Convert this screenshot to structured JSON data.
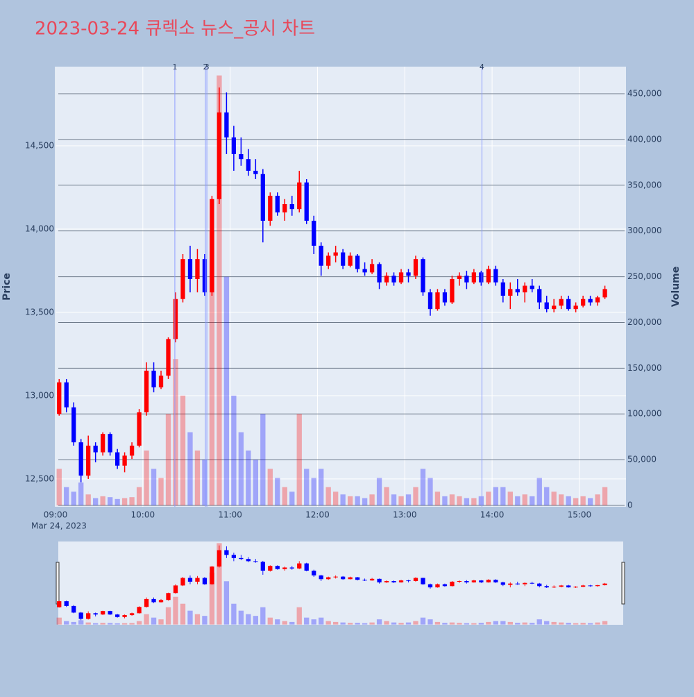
{
  "chart_data": {
    "type": "candlestick",
    "title": "2023-03-24 큐렉소 뉴스_공시 차트",
    "title_color": "#e8485a",
    "x_subtitle": "Mar 24, 2023",
    "yaxis_title": "Price",
    "y2axis_title": "Volume",
    "increasing_color": "#ff0000",
    "decreasing_color": "#0000ff",
    "x": [
      "09:00",
      "09:05",
      "09:10",
      "09:15",
      "09:20",
      "09:25",
      "09:30",
      "09:35",
      "09:40",
      "09:45",
      "09:50",
      "09:55",
      "10:00",
      "10:05",
      "10:10",
      "10:15",
      "10:20",
      "10:25",
      "10:30",
      "10:35",
      "10:40",
      "10:45",
      "10:50",
      "10:55",
      "11:00",
      "11:05",
      "11:10",
      "11:15",
      "11:20",
      "11:25",
      "11:30",
      "11:35",
      "11:40",
      "11:45",
      "11:50",
      "11:55",
      "12:00",
      "12:05",
      "12:10",
      "12:15",
      "12:20",
      "12:25",
      "12:30",
      "12:35",
      "12:40",
      "12:45",
      "12:50",
      "12:55",
      "13:00",
      "13:05",
      "13:10",
      "13:15",
      "13:20",
      "13:25",
      "13:30",
      "13:35",
      "13:40",
      "13:45",
      "13:50",
      "13:55",
      "14:00",
      "14:05",
      "14:10",
      "14:15",
      "14:20",
      "14:25",
      "14:30",
      "14:35",
      "14:40",
      "14:45",
      "14:50",
      "14:55",
      "15:00",
      "15:05",
      "15:10",
      "15:15"
    ],
    "open": [
      12890,
      13080,
      12930,
      12720,
      12520,
      12700,
      12660,
      12770,
      12660,
      12580,
      12640,
      12700,
      12900,
      13150,
      13050,
      13120,
      13340,
      13580,
      13820,
      13700,
      13820,
      13620,
      14180,
      14700,
      14550,
      14450,
      14420,
      14350,
      14330,
      14050,
      14200,
      14100,
      14150,
      14120,
      14280,
      14050,
      13900,
      13780,
      13840,
      13860,
      13780,
      13840,
      13760,
      13740,
      13790,
      13680,
      13720,
      13680,
      13740,
      13720,
      13820,
      13620,
      13520,
      13620,
      13560,
      13700,
      13720,
      13680,
      13740,
      13680,
      13760,
      13680,
      13600,
      13640,
      13620,
      13660,
      13640,
      13560,
      13520,
      13540,
      13580,
      13520,
      13540,
      13580,
      13560,
      13590
    ],
    "high": [
      13100,
      13100,
      12960,
      12740,
      12760,
      12720,
      12780,
      12780,
      12680,
      12660,
      12720,
      12920,
      13200,
      13200,
      13150,
      13350,
      13620,
      13850,
      13900,
      13880,
      13850,
      14200,
      14850,
      14820,
      14620,
      14550,
      14480,
      14420,
      14360,
      14220,
      14220,
      14180,
      14200,
      14350,
      14300,
      14080,
      13920,
      13860,
      13900,
      13880,
      13860,
      13850,
      13800,
      13820,
      13800,
      13740,
      13740,
      13760,
      13760,
      13840,
      13830,
      13640,
      13640,
      13640,
      13720,
      13740,
      13750,
      13760,
      13750,
      13780,
      13780,
      13700,
      13680,
      13700,
      13680,
      13700,
      13660,
      13600,
      13580,
      13600,
      13600,
      13560,
      13600,
      13600,
      13600,
      13660
    ],
    "low": [
      12880,
      12900,
      12700,
      12480,
      12500,
      12600,
      12640,
      12640,
      12560,
      12540,
      12620,
      12690,
      12880,
      13020,
      13040,
      13100,
      13320,
      13560,
      13620,
      13620,
      13600,
      13600,
      14150,
      14450,
      14350,
      14380,
      14320,
      14300,
      13920,
      14020,
      14080,
      14050,
      14080,
      14100,
      14030,
      13850,
      13720,
      13760,
      13800,
      13760,
      13770,
      13740,
      13720,
      13730,
      13640,
      13660,
      13660,
      13670,
      13680,
      13700,
      13600,
      13480,
      13510,
      13540,
      13550,
      13660,
      13640,
      13670,
      13660,
      13670,
      13660,
      13560,
      13520,
      13600,
      13560,
      13620,
      13520,
      13500,
      13500,
      13520,
      13510,
      13500,
      13530,
      13540,
      13540,
      13580
    ],
    "close": [
      13080,
      12930,
      12720,
      12520,
      12700,
      12660,
      12770,
      12660,
      12580,
      12640,
      12700,
      12900,
      13150,
      13050,
      13120,
      13340,
      13580,
      13820,
      13700,
      13820,
      13620,
      14180,
      14700,
      14550,
      14450,
      14420,
      14350,
      14330,
      14050,
      14200,
      14100,
      14150,
      14120,
      14280,
      14050,
      13900,
      13780,
      13840,
      13860,
      13780,
      13840,
      13760,
      13740,
      13790,
      13680,
      13720,
      13680,
      13740,
      13720,
      13820,
      13620,
      13520,
      13620,
      13560,
      13700,
      13720,
      13680,
      13740,
      13680,
      13760,
      13680,
      13600,
      13640,
      13620,
      13660,
      13640,
      13560,
      13520,
      13540,
      13580,
      13520,
      13540,
      13580,
      13560,
      13590,
      13640
    ],
    "volume": [
      40000,
      20000,
      15000,
      25000,
      12000,
      8000,
      10000,
      9000,
      7000,
      8000,
      9000,
      20000,
      60000,
      40000,
      30000,
      100000,
      160000,
      120000,
      80000,
      60000,
      50000,
      300000,
      470000,
      250000,
      120000,
      80000,
      60000,
      50000,
      100000,
      40000,
      30000,
      20000,
      15000,
      100000,
      40000,
      30000,
      40000,
      20000,
      15000,
      12000,
      10000,
      10000,
      8000,
      12000,
      30000,
      20000,
      12000,
      10000,
      12000,
      20000,
      40000,
      30000,
      15000,
      10000,
      12000,
      10000,
      8000,
      8000,
      10000,
      15000,
      20000,
      20000,
      15000,
      10000,
      12000,
      10000,
      30000,
      20000,
      15000,
      12000,
      10000,
      8000,
      10000,
      8000,
      12000,
      20000
    ],
    "xlim": [
      "09:00",
      "15:32"
    ],
    "xticks": [
      "09:00",
      "10:00",
      "11:00",
      "12:00",
      "13:00",
      "14:00",
      "15:00"
    ],
    "ylim": [
      12333,
      14975
    ],
    "yticks": [
      {
        "value": 12500,
        "label": "12,500"
      },
      {
        "value": 13000,
        "label": "13,000"
      },
      {
        "value": 13500,
        "label": "13,500"
      },
      {
        "value": 14000,
        "label": "14,000"
      },
      {
        "value": 14500,
        "label": "14,500"
      }
    ],
    "y2lim": [
      -1500,
      479600
    ],
    "y2ticks": [
      0,
      {
        "value": 50000,
        "label": "50,000"
      },
      {
        "value": 100000,
        "label": "100,000"
      },
      {
        "value": 150000,
        "label": "150,000"
      },
      {
        "value": 200000,
        "label": "200,000"
      },
      {
        "value": 250000,
        "label": "250,000"
      },
      {
        "value": 300000,
        "label": "300,000"
      },
      {
        "value": 350000,
        "label": "350,000"
      },
      {
        "value": 400000,
        "label": "400,000"
      },
      {
        "value": 450000,
        "label": "450,000"
      }
    ],
    "annotations": [
      {
        "x": "10:22",
        "label": "1"
      },
      {
        "x": "10:43",
        "label": "2"
      },
      {
        "x": "10:44",
        "label": "3"
      },
      {
        "x": "13:53",
        "label": "4"
      }
    ],
    "rangeslider": true
  }
}
